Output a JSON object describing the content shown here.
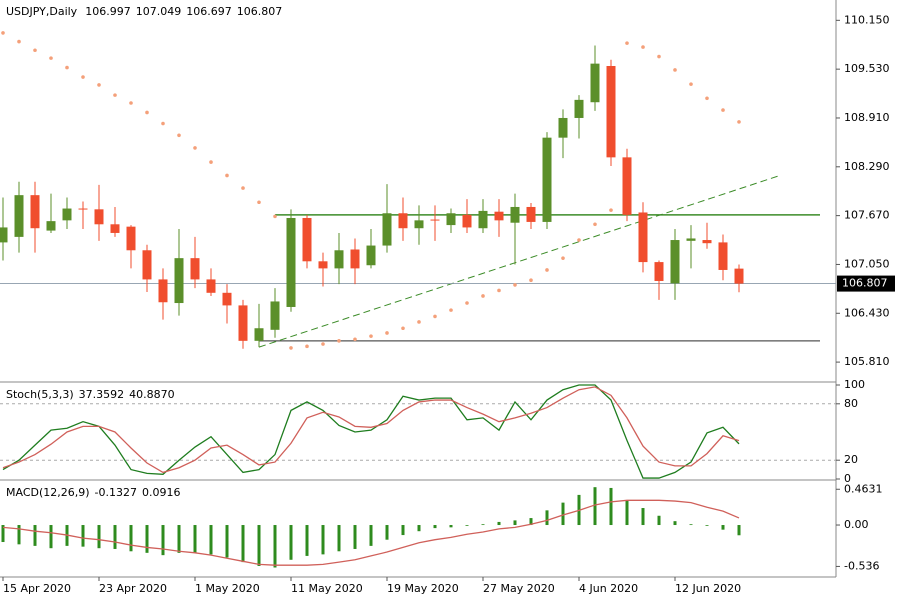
{
  "chart_data": [
    {
      "type": "candlestick",
      "title": "USDJPY,Daily",
      "categories": [
        "15 Apr 2020",
        null,
        null,
        null,
        null,
        null,
        "23 Apr 2020",
        null,
        null,
        null,
        null,
        null,
        "1 May 2020",
        null,
        null,
        null,
        null,
        null,
        "11 May 2020",
        null,
        null,
        null,
        null,
        null,
        "19 May 2020",
        null,
        null,
        null,
        null,
        null,
        "27 May 2020",
        null,
        null,
        null,
        null,
        null,
        "4 Jun 2020",
        null,
        null,
        null,
        null,
        null,
        "12 Jun 2020",
        null,
        null,
        null,
        null
      ],
      "open": [
        107.33,
        107.4,
        107.93,
        107.48,
        107.61,
        107.76,
        107.75,
        107.56,
        107.53,
        107.23,
        106.86,
        106.56,
        107.13,
        106.86,
        106.69,
        106.53,
        106.08,
        106.22,
        106.51,
        107.64,
        107.09,
        107.0,
        107.24,
        107.04,
        107.29,
        107.7,
        107.51,
        107.62,
        107.55,
        107.68,
        107.51,
        107.72,
        107.58,
        107.78,
        107.59,
        108.66,
        108.91,
        109.11,
        109.57,
        108.41,
        107.71,
        107.08,
        106.81,
        107.35,
        107.36,
        107.33,
        106.997
      ],
      "high": [
        107.9,
        108.1,
        108.1,
        107.95,
        107.9,
        107.85,
        108.06,
        107.78,
        107.55,
        107.3,
        107.0,
        107.5,
        107.4,
        107.0,
        106.8,
        106.6,
        106.55,
        106.75,
        107.75,
        107.68,
        107.2,
        107.45,
        107.38,
        107.5,
        108.07,
        107.9,
        107.8,
        107.8,
        107.76,
        107.88,
        107.88,
        107.88,
        107.95,
        107.83,
        108.73,
        109.02,
        109.2,
        109.83,
        109.65,
        108.52,
        107.84,
        107.1,
        107.5,
        107.55,
        107.58,
        107.43,
        107.049
      ],
      "low": [
        107.1,
        107.2,
        107.2,
        107.45,
        107.5,
        107.5,
        107.35,
        107.4,
        107.0,
        106.7,
        106.35,
        106.4,
        106.75,
        106.65,
        106.3,
        105.98,
        106.0,
        106.12,
        106.45,
        107.0,
        106.77,
        106.8,
        106.8,
        107.0,
        107.2,
        107.35,
        107.3,
        107.35,
        107.45,
        107.45,
        107.45,
        107.4,
        107.05,
        107.5,
        107.5,
        108.4,
        108.65,
        109.0,
        108.3,
        107.6,
        106.95,
        106.6,
        106.6,
        107.0,
        107.25,
        106.85,
        106.697
      ],
      "close": [
        107.52,
        107.93,
        107.51,
        107.6,
        107.76,
        107.75,
        107.56,
        107.45,
        107.23,
        106.86,
        106.57,
        107.13,
        106.86,
        106.69,
        106.53,
        106.08,
        106.24,
        106.58,
        107.64,
        107.09,
        107.0,
        107.23,
        107.0,
        107.29,
        107.7,
        107.51,
        107.61,
        107.61,
        107.7,
        107.52,
        107.73,
        107.61,
        107.78,
        107.59,
        108.66,
        108.91,
        109.14,
        109.6,
        108.41,
        107.68,
        107.08,
        106.84,
        107.36,
        107.38,
        107.32,
        106.98,
        106.807
      ],
      "up_color": "#5b8f2a",
      "down_color": "#f04e2e",
      "sar": {
        "color": "#f4a07a",
        "values": [
          109.99,
          109.88,
          109.77,
          109.67,
          109.55,
          109.43,
          109.33,
          109.2,
          109.1,
          108.98,
          108.84,
          108.69,
          108.53,
          108.35,
          108.18,
          108.02,
          107.84,
          107.66,
          105.99,
          106.01,
          106.04,
          106.08,
          106.1,
          106.14,
          106.18,
          106.24,
          106.32,
          106.39,
          106.47,
          106.56,
          106.65,
          106.72,
          106.79,
          106.85,
          106.98,
          107.13,
          107.36,
          107.56,
          107.74,
          109.86,
          109.81,
          109.69,
          109.52,
          109.34,
          109.16,
          109.01,
          108.86
        ]
      },
      "levels": [
        {
          "value": 107.68,
          "color": "#3c8c28"
        },
        {
          "value": 106.08,
          "color": "#555555"
        }
      ],
      "trendline": {
        "color": "#3c8c28",
        "values": [
          106.0,
          108.18
        ]
      },
      "ylim": [
        105.57,
        110.37
      ],
      "yticks": [
        {
          "value": 110.15,
          "label": "110.150"
        },
        {
          "value": 109.53,
          "label": "109.530"
        },
        {
          "value": 108.91,
          "label": "108.910"
        },
        {
          "value": 108.29,
          "label": "108.290"
        },
        {
          "value": 107.67,
          "label": "107.670"
        },
        {
          "value": 107.05,
          "label": "107.050"
        },
        {
          "value": 106.43,
          "label": "106.430"
        },
        {
          "value": 105.81,
          "label": "105.810"
        }
      ]
    },
    {
      "type": "line",
      "title": "Stoch(5,3,3)",
      "series": [
        {
          "color": "#1f7d1f",
          "values": [
            10,
            20,
            36,
            52,
            54,
            61,
            56,
            36,
            10,
            6,
            5,
            20,
            34,
            45,
            26,
            7,
            10,
            26,
            73,
            82,
            73,
            57,
            50,
            52,
            63,
            88,
            84,
            86,
            86,
            63,
            65,
            52,
            82,
            63,
            84,
            95,
            100,
            100,
            84,
            41,
            1,
            1,
            7,
            18,
            49,
            55,
            37.3592
          ]
        },
        {
          "color": "#d0605a",
          "values": [
            12,
            18,
            26,
            37,
            50,
            56,
            56,
            50,
            33,
            17,
            7,
            12,
            20,
            33,
            36,
            26,
            15,
            18,
            38,
            65,
            71,
            66,
            56,
            55,
            59,
            73,
            82,
            84,
            84,
            76,
            69,
            61,
            65,
            70,
            76,
            86,
            95,
            98,
            89,
            65,
            35,
            18,
            14,
            14,
            27,
            46,
            40.887
          ],
          "value_labels": [
            null,
            null,
            null,
            null,
            null,
            null,
            null,
            null,
            null,
            null,
            null,
            null,
            null,
            null,
            null,
            null,
            null,
            null,
            null,
            null,
            null,
            null,
            null,
            null,
            null,
            null,
            null,
            null,
            null,
            null,
            null,
            null,
            null,
            null,
            null,
            null,
            null,
            null,
            null,
            null,
            null,
            null,
            null,
            null,
            null,
            null,
            "40.8870"
          ]
        }
      ],
      "levels": [
        80,
        20
      ],
      "ylim": [
        0,
        100
      ],
      "yticks": [
        100,
        80,
        20,
        0
      ]
    },
    {
      "type": "macd",
      "title": "MACD(12,26,9)",
      "histogram": {
        "color": "#2e8b1e",
        "values": [
          -0.22,
          -0.25,
          -0.27,
          -0.3,
          -0.27,
          -0.28,
          -0.3,
          -0.31,
          -0.34,
          -0.36,
          -0.39,
          -0.36,
          -0.36,
          -0.38,
          -0.42,
          -0.48,
          -0.53,
          -0.55,
          -0.45,
          -0.4,
          -0.38,
          -0.34,
          -0.31,
          -0.27,
          -0.19,
          -0.13,
          -0.08,
          -0.04,
          -0.03,
          -0.01,
          0.01,
          0.04,
          0.06,
          0.09,
          0.19,
          0.29,
          0.39,
          0.49,
          0.48,
          0.32,
          0.22,
          0.12,
          0.05,
          0.01,
          -0.01,
          -0.06,
          -0.1327
        ]
      },
      "signal": {
        "color": "#d0605a",
        "values": [
          -0.03,
          -0.05,
          -0.08,
          -0.1,
          -0.13,
          -0.17,
          -0.19,
          -0.22,
          -0.26,
          -0.29,
          -0.31,
          -0.34,
          -0.36,
          -0.39,
          -0.43,
          -0.47,
          -0.51,
          -0.52,
          -0.52,
          -0.52,
          -0.51,
          -0.48,
          -0.45,
          -0.4,
          -0.35,
          -0.29,
          -0.23,
          -0.19,
          -0.16,
          -0.12,
          -0.09,
          -0.05,
          -0.03,
          0.01,
          0.06,
          0.13,
          0.19,
          0.26,
          0.3,
          0.32,
          0.32,
          0.32,
          0.31,
          0.29,
          0.23,
          0.18,
          0.0916
        ]
      },
      "ylim": [
        -0.66,
        0.57
      ],
      "yticks": [
        0.4631,
        {
          "value": 0,
          "label": "0.00"
        },
        -0.536
      ]
    }
  ]
}
